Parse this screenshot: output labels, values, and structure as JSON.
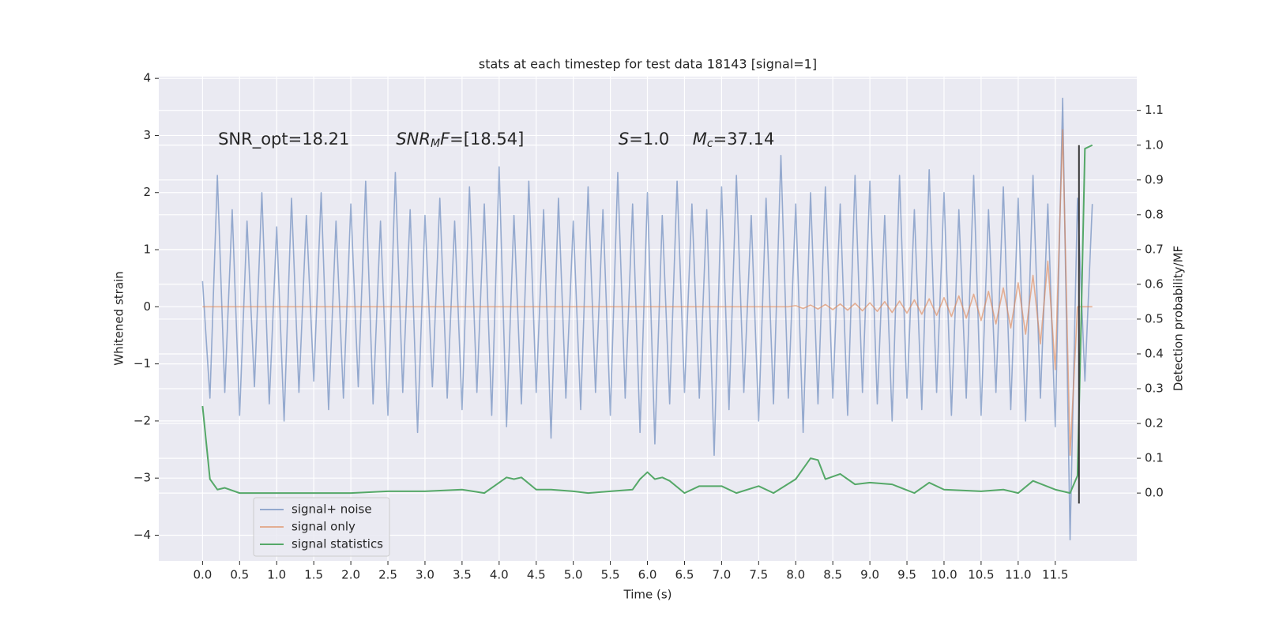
{
  "chart_data": {
    "type": "line",
    "title": "stats at each timestep for test data 18143 [signal=1]",
    "xlabel": "Time (s)",
    "ylabel": "Whitened strain",
    "y2label": "Detection probability/MF",
    "background": "#eaeaf2",
    "grid": true,
    "legend_loc": "lower left",
    "xlim": [
      -0.59,
      12.6
    ],
    "ylim": [
      -4.45,
      4.03
    ],
    "y2lim": [
      -0.195,
      1.197
    ],
    "xticks": [
      {
        "value": 0,
        "label": "0.0"
      },
      {
        "value": 0.5,
        "label": "0.5"
      },
      {
        "value": 1,
        "label": "1.0"
      },
      {
        "value": 1.5,
        "label": "1.5"
      },
      {
        "value": 2,
        "label": "2.0"
      },
      {
        "value": 2.5,
        "label": "2.5"
      },
      {
        "value": 3,
        "label": "3.0"
      },
      {
        "value": 3.5,
        "label": "3.5"
      },
      {
        "value": 4,
        "label": "4.0"
      },
      {
        "value": 4.5,
        "label": "4.5"
      },
      {
        "value": 5,
        "label": "5.0"
      },
      {
        "value": 5.5,
        "label": "5.5"
      },
      {
        "value": 6,
        "label": "6.0"
      },
      {
        "value": 6.5,
        "label": "6.5"
      },
      {
        "value": 7,
        "label": "7.0"
      },
      {
        "value": 7.5,
        "label": "7.5"
      },
      {
        "value": 8,
        "label": "8.0"
      },
      {
        "value": 8.5,
        "label": "8.5"
      },
      {
        "value": 9,
        "label": "9.0"
      },
      {
        "value": 9.5,
        "label": "9.5"
      },
      {
        "value": 10,
        "label": "10.0"
      },
      {
        "value": 10.5,
        "label": "10.5"
      },
      {
        "value": 11,
        "label": "11.0"
      },
      {
        "value": 11.5,
        "label": "11.5"
      }
    ],
    "yticks": [
      {
        "value": -4,
        "label": "−4"
      },
      {
        "value": -3,
        "label": "−3"
      },
      {
        "value": -2,
        "label": "−2"
      },
      {
        "value": -1,
        "label": "−1"
      },
      0,
      1,
      2,
      3,
      4
    ],
    "y2ticks": [
      {
        "value": 0,
        "label": "0.0"
      },
      {
        "value": 0.1,
        "label": "0.1"
      },
      {
        "value": 0.2,
        "label": "0.2"
      },
      {
        "value": 0.3,
        "label": "0.3"
      },
      {
        "value": 0.4,
        "label": "0.4"
      },
      {
        "value": 0.5,
        "label": "0.5"
      },
      {
        "value": 0.6,
        "label": "0.6"
      },
      {
        "value": 0.7,
        "label": "0.7"
      },
      {
        "value": 0.8,
        "label": "0.8"
      },
      {
        "value": 0.9,
        "label": "0.9"
      },
      {
        "value": 1.0,
        "label": "1.0"
      },
      {
        "value": 1.1,
        "label": "1.1"
      }
    ],
    "annotations": [
      {
        "x": 0.21,
        "y": 2.92,
        "parts": [
          {
            "text": "SNR_opt=18.21",
            "style": "normal"
          }
        ]
      },
      {
        "x": 2.61,
        "y": 2.92,
        "parts": [
          {
            "text": "SNR",
            "style": "italic"
          },
          {
            "text": "M",
            "style": "sub"
          },
          {
            "text": "F",
            "style": "italic"
          },
          {
            "text": "=[18.54]",
            "style": "normal"
          }
        ]
      },
      {
        "x": 5.61,
        "y": 2.92,
        "parts": [
          {
            "text": "S",
            "style": "italic"
          },
          {
            "text": "=1.0",
            "style": "normal"
          }
        ]
      },
      {
        "x": 6.61,
        "y": 2.92,
        "parts": [
          {
            "text": "M",
            "style": "italic"
          },
          {
            "text": "c",
            "style": "sub"
          },
          {
            "text": "=37.14",
            "style": "normal"
          }
        ]
      }
    ],
    "series": [
      {
        "name": "signal+ noise",
        "color": "#4c72b0",
        "opacity": 0.55,
        "axis": "y",
        "x": [
          0.0,
          0.1,
          0.2,
          0.3,
          0.4,
          0.5,
          0.6,
          0.7,
          0.8,
          0.9,
          1.0,
          1.1,
          1.2,
          1.3,
          1.4,
          1.5,
          1.6,
          1.7,
          1.8,
          1.9,
          2.0,
          2.1,
          2.2,
          2.3,
          2.4,
          2.5,
          2.6,
          2.7,
          2.8,
          2.9,
          3.0,
          3.1,
          3.2,
          3.3,
          3.4,
          3.5,
          3.6,
          3.7,
          3.8,
          3.9,
          4.0,
          4.1,
          4.2,
          4.3,
          4.4,
          4.5,
          4.6,
          4.7,
          4.8,
          4.9,
          5.0,
          5.1,
          5.2,
          5.3,
          5.4,
          5.5,
          5.6,
          5.7,
          5.8,
          5.9,
          6.0,
          6.1,
          6.2,
          6.3,
          6.4,
          6.5,
          6.6,
          6.7,
          6.8,
          6.9,
          7.0,
          7.1,
          7.2,
          7.3,
          7.4,
          7.5,
          7.6,
          7.7,
          7.8,
          7.9,
          8.0,
          8.1,
          8.2,
          8.3,
          8.4,
          8.5,
          8.6,
          8.7,
          8.8,
          8.9,
          9.0,
          9.1,
          9.2,
          9.3,
          9.4,
          9.5,
          9.6,
          9.7,
          9.8,
          9.9,
          10.0,
          10.1,
          10.2,
          10.3,
          10.4,
          10.5,
          10.6,
          10.7,
          10.8,
          10.9,
          11.0,
          11.1,
          11.2,
          11.3,
          11.4,
          11.5,
          11.6,
          11.7,
          11.8,
          11.9,
          12.0
        ],
        "values": [
          0.45,
          -1.6,
          2.3,
          -1.5,
          1.7,
          -1.9,
          1.5,
          -1.4,
          2.0,
          -1.7,
          1.4,
          -2.0,
          1.9,
          -1.5,
          1.6,
          -1.3,
          2.0,
          -1.8,
          1.5,
          -1.6,
          1.8,
          -1.4,
          2.2,
          -1.7,
          1.5,
          -1.9,
          2.35,
          -1.5,
          1.7,
          -2.2,
          1.6,
          -1.4,
          1.9,
          -1.6,
          1.5,
          -1.8,
          2.1,
          -1.5,
          1.8,
          -1.9,
          2.45,
          -2.1,
          1.6,
          -1.7,
          2.2,
          -1.5,
          1.7,
          -2.3,
          1.9,
          -1.6,
          1.5,
          -1.8,
          2.1,
          -1.5,
          1.7,
          -1.9,
          2.35,
          -1.6,
          1.8,
          -2.2,
          2.0,
          -2.4,
          1.6,
          -1.7,
          2.2,
          -1.5,
          1.8,
          -1.6,
          1.7,
          -2.6,
          2.1,
          -1.8,
          2.3,
          -1.5,
          1.6,
          -2.0,
          1.9,
          -1.7,
          2.65,
          -1.6,
          1.8,
          -2.2,
          2.0,
          -1.7,
          2.1,
          -1.6,
          1.8,
          -1.9,
          2.3,
          -1.5,
          2.2,
          -1.7,
          1.6,
          -2.0,
          2.3,
          -1.6,
          1.7,
          -1.8,
          2.4,
          -1.5,
          2.0,
          -1.9,
          1.7,
          -1.6,
          2.3,
          -1.9,
          1.7,
          -1.5,
          2.1,
          -1.8,
          1.9,
          -2.0,
          2.3,
          -1.6,
          1.8,
          -2.1,
          3.65,
          -4.08,
          1.9,
          -1.3,
          1.8
        ]
      },
      {
        "name": "signal only",
        "color": "#dd8452",
        "opacity": 0.6,
        "axis": "y",
        "x": [
          0.0,
          7.9,
          8.0,
          8.1,
          8.2,
          8.3,
          8.4,
          8.5,
          8.6,
          8.7,
          8.8,
          8.9,
          9.0,
          9.1,
          9.2,
          9.3,
          9.4,
          9.5,
          9.6,
          9.7,
          9.8,
          9.9,
          10.0,
          10.1,
          10.2,
          10.3,
          10.4,
          10.5,
          10.6,
          10.7,
          10.8,
          10.9,
          11.0,
          11.1,
          11.2,
          11.3,
          11.4,
          11.5,
          11.6,
          11.7,
          11.8,
          11.9,
          12.0
        ],
        "values": [
          0,
          0,
          0.02,
          -0.03,
          0.03,
          -0.04,
          0.04,
          -0.05,
          0.05,
          -0.06,
          0.06,
          -0.07,
          0.07,
          -0.08,
          0.09,
          -0.1,
          0.1,
          -0.11,
          0.12,
          -0.13,
          0.14,
          -0.15,
          0.16,
          -0.17,
          0.19,
          -0.2,
          0.22,
          -0.24,
          0.27,
          -0.3,
          0.33,
          -0.37,
          0.42,
          -0.48,
          0.55,
          -0.65,
          0.8,
          -1.1,
          3.1,
          -2.6,
          0,
          0,
          0
        ]
      },
      {
        "name": "signal statistics",
        "color": "#55a868",
        "opacity": 1,
        "axis": "y2",
        "x": [
          0.0,
          0.1,
          0.2,
          0.3,
          0.5,
          1.0,
          1.5,
          2.0,
          2.5,
          3.0,
          3.5,
          3.8,
          4.0,
          4.1,
          4.2,
          4.3,
          4.5,
          4.7,
          5.0,
          5.2,
          5.5,
          5.8,
          5.9,
          6.0,
          6.1,
          6.2,
          6.3,
          6.5,
          6.7,
          7.0,
          7.2,
          7.5,
          7.7,
          8.0,
          8.2,
          8.3,
          8.4,
          8.6,
          8.8,
          9.0,
          9.3,
          9.6,
          9.8,
          10.0,
          10.5,
          10.8,
          11.0,
          11.2,
          11.5,
          11.7,
          11.8,
          11.85,
          11.9,
          12.0
        ],
        "values": [
          0.25,
          0.04,
          0.01,
          0.015,
          0.0,
          0.0,
          0.0,
          0.0,
          0.005,
          0.005,
          0.01,
          0.0,
          0.03,
          0.045,
          0.04,
          0.045,
          0.01,
          0.01,
          0.005,
          0.0,
          0.005,
          0.01,
          0.04,
          0.06,
          0.04,
          0.045,
          0.035,
          0.0,
          0.02,
          0.02,
          0.0,
          0.02,
          0.0,
          0.04,
          0.1,
          0.095,
          0.04,
          0.055,
          0.025,
          0.03,
          0.025,
          0.0,
          0.03,
          0.01,
          0.005,
          0.01,
          0.0,
          0.035,
          0.01,
          0.0,
          0.05,
          0.5,
          0.99,
          1.0
        ]
      }
    ],
    "vline": {
      "x": 11.82,
      "y2": [
        -0.03,
        1.0
      ],
      "color": "#333333"
    }
  }
}
